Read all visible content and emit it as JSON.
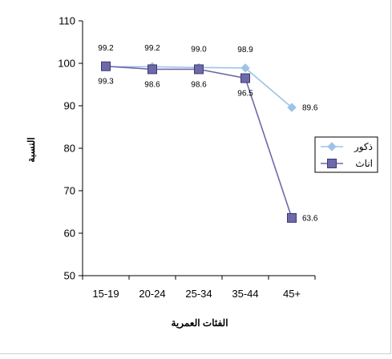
{
  "chart_data": {
    "type": "line",
    "title": "",
    "xlabel": "الفئات العمرية",
    "ylabel": "النسبة",
    "categories": [
      "15-19",
      "20-24",
      "25-34",
      "35-44",
      "45+"
    ],
    "ylim": [
      50,
      110
    ],
    "yticks": [
      50,
      60,
      70,
      80,
      90,
      100,
      110
    ],
    "grid": false,
    "legend_position": "right",
    "series": [
      {
        "name": "ذكور",
        "values": [
          99.2,
          99.2,
          99.0,
          98.9,
          89.6
        ],
        "labels": [
          "99.2",
          "99.2",
          "99.0",
          "98.9",
          "89.6"
        ],
        "color": "#9dc3e6",
        "marker": "diamond"
      },
      {
        "name": "اناث",
        "values": [
          99.3,
          98.6,
          98.6,
          96.5,
          63.6
        ],
        "labels": [
          "99.3",
          "98.6",
          "98.6",
          "96.5",
          "63.6"
        ],
        "color": "#6e69a8",
        "marker": "square"
      }
    ]
  }
}
